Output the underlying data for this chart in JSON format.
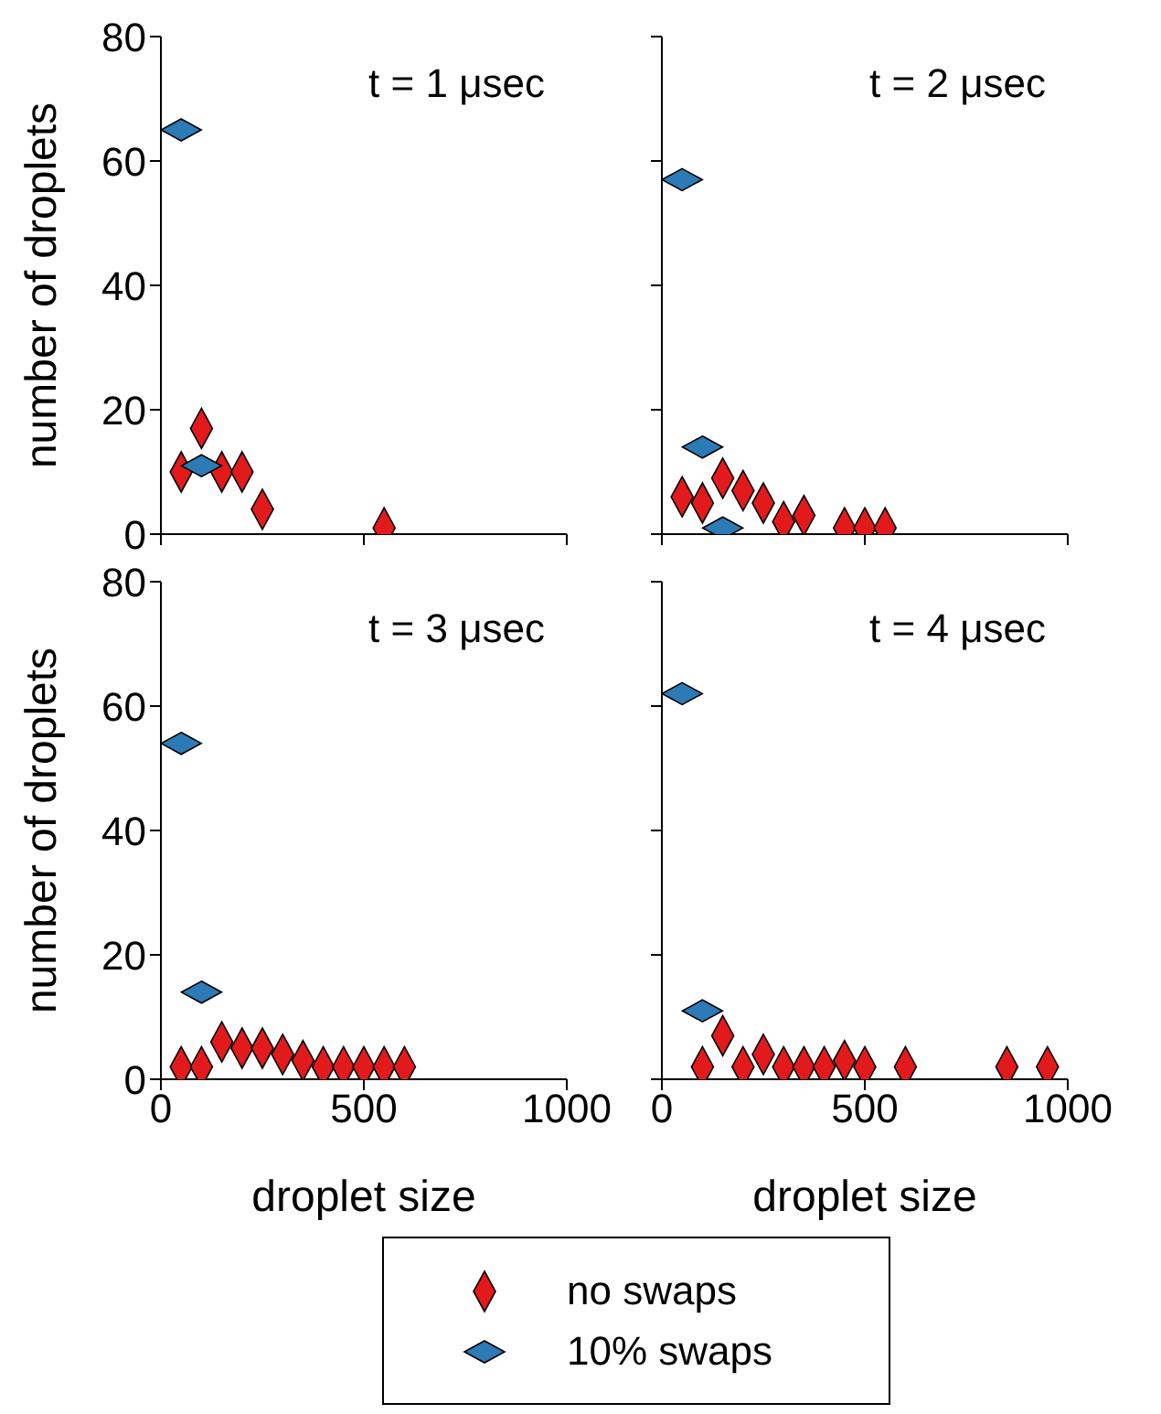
{
  "chart_data": [
    {
      "type": "scatter",
      "title": "t = 1 μsec",
      "ylabel": "number of droplets",
      "xlim": [
        0,
        1000
      ],
      "xticks": [
        0,
        500,
        1000
      ],
      "ylim": [
        0,
        80
      ],
      "yticks": [
        0,
        20,
        40,
        60,
        80
      ],
      "tick_labels": "y",
      "marker": "diamond",
      "legend": "bottom",
      "series": [
        {
          "name": "no swaps",
          "color": "#e31a1c",
          "x": [
            50,
            100,
            150,
            200,
            250,
            550
          ],
          "values": [
            10,
            17,
            10,
            10,
            4,
            1
          ]
        },
        {
          "name": "10% swaps",
          "color": "#2c7bb6",
          "x": [
            50,
            100
          ],
          "values": [
            65,
            11
          ]
        }
      ]
    },
    {
      "type": "scatter",
      "title": "t = 2 μsec",
      "xlim": [
        0,
        1000
      ],
      "xticks": [
        0,
        500,
        1000
      ],
      "ylim": [
        0,
        80
      ],
      "yticks": [
        0,
        20,
        40,
        60,
        80
      ],
      "tick_labels": false,
      "marker": "diamond",
      "series": [
        {
          "color": "#e31a1c",
          "x": [
            50,
            100,
            150,
            200,
            250,
            300,
            350,
            450,
            500,
            550
          ],
          "values": [
            6,
            5,
            9,
            7,
            5,
            2,
            3,
            1,
            1,
            1
          ]
        },
        {
          "color": "#2c7bb6",
          "x": [
            50,
            100,
            150
          ],
          "values": [
            57,
            14,
            1
          ]
        }
      ]
    },
    {
      "type": "scatter",
      "title": "t = 3 μsec",
      "xlabel": "droplet size",
      "ylabel": "number of droplets",
      "xlim": [
        0,
        1000
      ],
      "xticks": [
        0,
        500,
        1000
      ],
      "ylim": [
        0,
        80
      ],
      "yticks": [
        0,
        20,
        40,
        60,
        80
      ],
      "marker": "diamond",
      "series": [
        {
          "color": "#e31a1c",
          "x": [
            50,
            100,
            150,
            200,
            250,
            300,
            350,
            400,
            450,
            500,
            550,
            600
          ],
          "values": [
            2,
            2,
            6,
            5,
            5,
            4,
            3,
            2,
            2,
            2,
            2,
            2
          ]
        },
        {
          "color": "#2c7bb6",
          "x": [
            50,
            100
          ],
          "values": [
            54,
            14
          ]
        }
      ]
    },
    {
      "type": "scatter",
      "title": "t = 4 μsec",
      "xlabel": "droplet size",
      "xlim": [
        0,
        1000
      ],
      "xticks": [
        0,
        500,
        1000
      ],
      "ylim": [
        0,
        80
      ],
      "yticks": [
        0,
        20,
        40,
        60,
        80
      ],
      "tick_labels": "x",
      "marker": "diamond",
      "series": [
        {
          "color": "#e31a1c",
          "x": [
            100,
            150,
            200,
            250,
            300,
            350,
            400,
            450,
            500,
            600,
            850,
            950
          ],
          "values": [
            2,
            7,
            2,
            4,
            2,
            2,
            2,
            3,
            2,
            2,
            2,
            2
          ]
        },
        {
          "color": "#2c7bb6",
          "x": [
            50,
            100
          ],
          "values": [
            62,
            11
          ]
        }
      ]
    }
  ]
}
